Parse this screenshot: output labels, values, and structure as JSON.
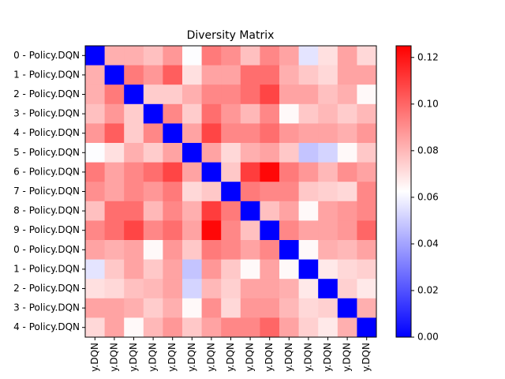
{
  "chart_data": {
    "type": "heatmap",
    "title": "Diversity Matrix",
    "row_labels": [
      "0 - Policy.DQN",
      "1 - Policy.DQN",
      "2 - Policy.DQN",
      "3 - Policy.DQN",
      "4 - Policy.DQN",
      "5 - Policy.DQN",
      "6 - Policy.DQN",
      "7 - Policy.DQN",
      "8 - Policy.DQN",
      "9 - Policy.DQN",
      "0 - Policy.DQN",
      "1 - Policy.DQN",
      "2 - Policy.DQN",
      "3 - Policy.DQN",
      "4 - Policy.DQN"
    ],
    "col_labels": [
      "y.DQN",
      "y.DQN",
      "y.DQN",
      "y.DQN",
      "y.DQN",
      "y.DQN",
      "y.DQN",
      "y.DQN",
      "y.DQN",
      "y.DQN",
      "y.DQN",
      "y.DQN",
      "y.DQN",
      "y.DQN",
      "y.DQN"
    ],
    "values": [
      [
        0.0,
        0.082,
        0.082,
        0.078,
        0.088,
        0.062,
        0.095,
        0.09,
        0.078,
        0.092,
        0.085,
        0.056,
        0.07,
        0.085,
        0.072
      ],
      [
        0.082,
        0.0,
        0.095,
        0.088,
        0.102,
        0.07,
        0.085,
        0.085,
        0.098,
        0.098,
        0.082,
        0.076,
        0.072,
        0.085,
        0.085
      ],
      [
        0.082,
        0.095,
        0.0,
        0.075,
        0.075,
        0.082,
        0.092,
        0.092,
        0.098,
        0.108,
        0.085,
        0.085,
        0.078,
        0.082,
        0.064
      ],
      [
        0.078,
        0.088,
        0.075,
        0.0,
        0.092,
        0.075,
        0.098,
        0.088,
        0.08,
        0.092,
        0.064,
        0.076,
        0.08,
        0.075,
        0.08
      ],
      [
        0.088,
        0.102,
        0.075,
        0.092,
        0.0,
        0.085,
        0.108,
        0.092,
        0.092,
        0.098,
        0.088,
        0.085,
        0.085,
        0.082,
        0.088
      ],
      [
        0.062,
        0.07,
        0.082,
        0.075,
        0.085,
        0.0,
        0.085,
        0.072,
        0.082,
        0.085,
        0.076,
        0.048,
        0.052,
        0.064,
        0.076
      ],
      [
        0.095,
        0.085,
        0.092,
        0.098,
        0.108,
        0.085,
        0.0,
        0.076,
        0.11,
        0.123,
        0.095,
        0.088,
        0.08,
        0.09,
        0.085
      ],
      [
        0.09,
        0.085,
        0.092,
        0.088,
        0.095,
        0.072,
        0.076,
        0.0,
        0.095,
        0.092,
        0.092,
        0.076,
        0.074,
        0.072,
        0.092
      ],
      [
        0.078,
        0.098,
        0.098,
        0.08,
        0.092,
        0.082,
        0.11,
        0.095,
        0.0,
        0.078,
        0.085,
        0.064,
        0.085,
        0.088,
        0.092
      ],
      [
        0.092,
        0.098,
        0.108,
        0.092,
        0.098,
        0.085,
        0.123,
        0.092,
        0.078,
        0.0,
        0.092,
        0.085,
        0.085,
        0.088,
        0.1
      ],
      [
        0.085,
        0.082,
        0.085,
        0.064,
        0.088,
        0.076,
        0.095,
        0.092,
        0.085,
        0.092,
        0.0,
        0.064,
        0.082,
        0.08,
        0.085
      ],
      [
        0.056,
        0.076,
        0.085,
        0.076,
        0.085,
        0.048,
        0.088,
        0.076,
        0.064,
        0.085,
        0.064,
        0.0,
        0.068,
        0.072,
        0.074
      ],
      [
        0.07,
        0.072,
        0.078,
        0.08,
        0.085,
        0.052,
        0.08,
        0.074,
        0.085,
        0.085,
        0.082,
        0.068,
        0.0,
        0.074,
        0.068
      ],
      [
        0.085,
        0.085,
        0.082,
        0.075,
        0.082,
        0.064,
        0.09,
        0.072,
        0.088,
        0.088,
        0.08,
        0.072,
        0.074,
        0.0,
        0.082
      ],
      [
        0.072,
        0.085,
        0.064,
        0.08,
        0.088,
        0.076,
        0.085,
        0.092,
        0.092,
        0.1,
        0.085,
        0.074,
        0.068,
        0.082,
        0.0
      ]
    ],
    "colormap": "bwr",
    "vmin": 0.0,
    "vmax": 0.125,
    "colorbar_ticks": [
      "0.00",
      "0.02",
      "0.04",
      "0.06",
      "0.08",
      "0.10",
      "0.12"
    ],
    "colorbar_tick_values": [
      0.0,
      0.02,
      0.04,
      0.06,
      0.08,
      0.1,
      0.12
    ],
    "colors": {
      "low": "#0000ff",
      "mid": "#ffffff",
      "high": "#ff0000"
    }
  }
}
